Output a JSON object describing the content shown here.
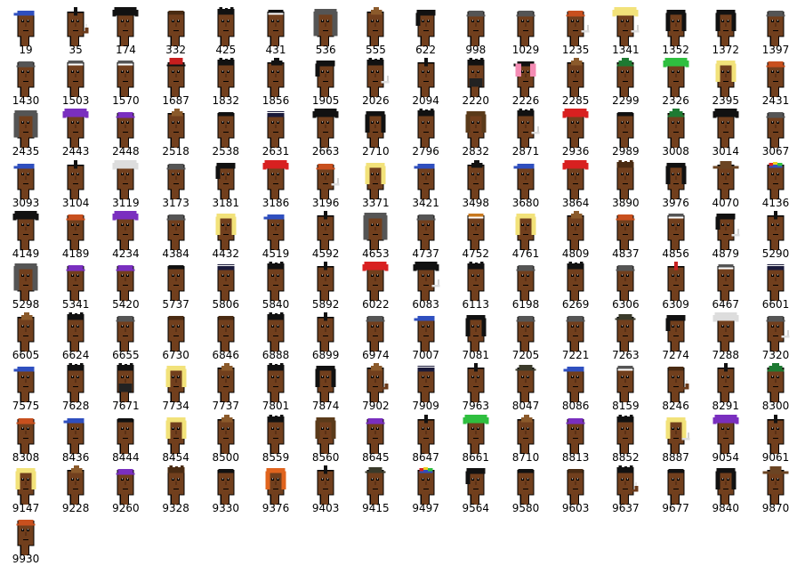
{
  "colors": {
    "skin": "#713f1d",
    "outline": "#000000",
    "eye": "#ffffff",
    "label": "#000000"
  },
  "items": [
    {
      "id": "19",
      "hair": "bandana",
      "hair_color": "#2f4fbf"
    },
    {
      "id": "35",
      "hair": "mohawk",
      "hair_color": "#111111",
      "accessory": "pipe"
    },
    {
      "id": "174",
      "hair": "wild",
      "hair_color": "#111111"
    },
    {
      "id": "332",
      "hair": "short",
      "hair_color": "#4a2b12"
    },
    {
      "id": "425",
      "hair": "messy",
      "hair_color": "#111111"
    },
    {
      "id": "431",
      "hair": "headband",
      "hair_color": "#111111"
    },
    {
      "id": "536",
      "hair": "hoodie",
      "hair_color": "#555555"
    },
    {
      "id": "555",
      "hair": "peak",
      "hair_color": "#8b5a2b"
    },
    {
      "id": "622",
      "hair": "bob",
      "hair_color": "#111111"
    },
    {
      "id": "998",
      "hair": "cap",
      "hair_color": "#555555"
    },
    {
      "id": "1029",
      "hair": "cap",
      "hair_color": "#555555"
    },
    {
      "id": "1235",
      "hair": "cap",
      "hair_color": "#c8501e",
      "accessory": "cigarette"
    },
    {
      "id": "1341",
      "hair": "wild",
      "hair_color": "#f2e27a",
      "accessory": "cigarette"
    },
    {
      "id": "1352",
      "hair": "long",
      "hair_color": "#111111"
    },
    {
      "id": "1372",
      "hair": "long",
      "hair_color": "#111111"
    },
    {
      "id": "1397",
      "hair": "cap",
      "hair_color": "#555555"
    },
    {
      "id": "1430",
      "hair": "cap",
      "hair_color": "#555555"
    },
    {
      "id": "1503",
      "hair": "headband",
      "hair_color": "#555555"
    },
    {
      "id": "1570",
      "hair": "headband",
      "hair_color": "#555555"
    },
    {
      "id": "1687",
      "hair": "tophat",
      "hair_color": "#c81e1e"
    },
    {
      "id": "1832",
      "hair": "messy",
      "hair_color": "#111111"
    },
    {
      "id": "1856",
      "hair": "peak",
      "hair_color": "#111111"
    },
    {
      "id": "1905",
      "hair": "bob",
      "hair_color": "#111111"
    },
    {
      "id": "2026",
      "hair": "messy",
      "hair_color": "#111111",
      "accessory": "cigarette"
    },
    {
      "id": "2094",
      "hair": "mohawk",
      "hair_color": "#111111"
    },
    {
      "id": "2220",
      "hair": "messy",
      "hair_color": "#111111",
      "accessory": "beard"
    },
    {
      "id": "2226",
      "hair": "bandana",
      "hair_color": "#111111",
      "accessory": "pink-hair"
    },
    {
      "id": "2285",
      "hair": "peak",
      "hair_color": "#8b5a2b"
    },
    {
      "id": "2299",
      "hair": "elf",
      "hair_color": "#1e7a32"
    },
    {
      "id": "2326",
      "hair": "wild",
      "hair_color": "#2fbf3f"
    },
    {
      "id": "2395",
      "hair": "long",
      "hair_color": "#f2e27a"
    },
    {
      "id": "2431",
      "hair": "cap",
      "hair_color": "#c8501e"
    },
    {
      "id": "2435",
      "hair": "hoodie",
      "hair_color": "#555555"
    },
    {
      "id": "2443",
      "hair": "wild",
      "hair_color": "#7a2fbf"
    },
    {
      "id": "2448",
      "hair": "cap",
      "hair_color": "#7a2fbf"
    },
    {
      "id": "2518",
      "hair": "peak",
      "hair_color": "#8b5a2b"
    },
    {
      "id": "2538",
      "hair": "short",
      "hair_color": "#111111"
    },
    {
      "id": "2631",
      "hair": "police",
      "hair_color": "#1a1a3a"
    },
    {
      "id": "2663",
      "hair": "wild",
      "hair_color": "#111111"
    },
    {
      "id": "2710",
      "hair": "long",
      "hair_color": "#111111"
    },
    {
      "id": "2796",
      "hair": "messy",
      "hair_color": "#111111"
    },
    {
      "id": "2832",
      "hair": "long",
      "hair_color": "#5a3a1a"
    },
    {
      "id": "2871",
      "hair": "messy",
      "hair_color": "#111111",
      "accessory": "cigarette"
    },
    {
      "id": "2936",
      "hair": "wild",
      "hair_color": "#d82020"
    },
    {
      "id": "2989",
      "hair": "short",
      "hair_color": "#111111"
    },
    {
      "id": "3008",
      "hair": "elf",
      "hair_color": "#1e7a32"
    },
    {
      "id": "3014",
      "hair": "wild",
      "hair_color": "#111111"
    },
    {
      "id": "3067",
      "hair": "cap",
      "hair_color": "#555555"
    },
    {
      "id": "3093",
      "hair": "bandana",
      "hair_color": "#2f4fbf"
    },
    {
      "id": "3104",
      "hair": "mohawk",
      "hair_color": "#111111"
    },
    {
      "id": "3119",
      "hair": "wild",
      "hair_color": "#dddddd"
    },
    {
      "id": "3173",
      "hair": "cap",
      "hair_color": "#555555"
    },
    {
      "id": "3181",
      "hair": "bob",
      "hair_color": "#111111"
    },
    {
      "id": "3186",
      "hair": "wild",
      "hair_color": "#d82020"
    },
    {
      "id": "3196",
      "hair": "cap",
      "hair_color": "#c8501e",
      "accessory": "cigarette"
    },
    {
      "id": "3371",
      "hair": "long",
      "hair_color": "#f2e27a"
    },
    {
      "id": "3421",
      "hair": "bandana",
      "hair_color": "#2f4fbf"
    },
    {
      "id": "3498",
      "hair": "peak",
      "hair_color": "#111111"
    },
    {
      "id": "3680",
      "hair": "bandana",
      "hair_color": "#2f4fbf"
    },
    {
      "id": "3864",
      "hair": "wild",
      "hair_color": "#d82020"
    },
    {
      "id": "3890",
      "hair": "messy",
      "hair_color": "#4a2b12"
    },
    {
      "id": "3976",
      "hair": "long",
      "hair_color": "#111111"
    },
    {
      "id": "4070",
      "hair": "cowboy",
      "hair_color": "#6b4423"
    },
    {
      "id": "4136",
      "hair": "propeller",
      "hair_color": "#2f4fbf"
    },
    {
      "id": "4149",
      "hair": "wild",
      "hair_color": "#111111"
    },
    {
      "id": "4189",
      "hair": "cap",
      "hair_color": "#c8501e"
    },
    {
      "id": "4234",
      "hair": "wild",
      "hair_color": "#7a2fbf"
    },
    {
      "id": "4384",
      "hair": "cap",
      "hair_color": "#555555"
    },
    {
      "id": "4432",
      "hair": "long",
      "hair_color": "#f2e27a"
    },
    {
      "id": "4519",
      "hair": "bandana",
      "hair_color": "#2f4fbf"
    },
    {
      "id": "4592",
      "hair": "mohawk",
      "hair_color": "#111111"
    },
    {
      "id": "4653",
      "hair": "hoodie",
      "hair_color": "#555555"
    },
    {
      "id": "4737",
      "hair": "cap",
      "hair_color": "#555555"
    },
    {
      "id": "4752",
      "hair": "headband",
      "hair_color": "#c8781e"
    },
    {
      "id": "4761",
      "hair": "long",
      "hair_color": "#f2e27a"
    },
    {
      "id": "4809",
      "hair": "peak",
      "hair_color": "#8b5a2b"
    },
    {
      "id": "4837",
      "hair": "cap",
      "hair_color": "#c8501e"
    },
    {
      "id": "4856",
      "hair": "headband",
      "hair_color": "#555555"
    },
    {
      "id": "4879",
      "hair": "bob",
      "hair_color": "#111111",
      "accessory": "cigarette"
    },
    {
      "id": "5290",
      "hair": "mohawk",
      "hair_color": "#111111"
    },
    {
      "id": "5298",
      "hair": "hoodie",
      "hair_color": "#555555"
    },
    {
      "id": "5341",
      "hair": "cap",
      "hair_color": "#7a2fbf"
    },
    {
      "id": "5420",
      "hair": "cap",
      "hair_color": "#7a2fbf"
    },
    {
      "id": "5737",
      "hair": "short",
      "hair_color": "#111111"
    },
    {
      "id": "5806",
      "hair": "police",
      "hair_color": "#1a1a3a"
    },
    {
      "id": "5840",
      "hair": "messy",
      "hair_color": "#111111"
    },
    {
      "id": "5892",
      "hair": "mohawk",
      "hair_color": "#111111"
    },
    {
      "id": "6022",
      "hair": "wild",
      "hair_color": "#d82020"
    },
    {
      "id": "6083",
      "hair": "wild",
      "hair_color": "#111111",
      "accessory": "cigarette"
    },
    {
      "id": "6113",
      "hair": "messy",
      "hair_color": "#111111"
    },
    {
      "id": "6198",
      "hair": "cap",
      "hair_color": "#555555"
    },
    {
      "id": "6269",
      "hair": "messy",
      "hair_color": "#111111"
    },
    {
      "id": "6306",
      "hair": "cap",
      "hair_color": "#555555"
    },
    {
      "id": "6309",
      "hair": "mohawk",
      "hair_color": "#c82020"
    },
    {
      "id": "6467",
      "hair": "headband",
      "hair_color": "#555555"
    },
    {
      "id": "6601",
      "hair": "police",
      "hair_color": "#1a1a3a"
    },
    {
      "id": "6605",
      "hair": "peak",
      "hair_color": "#8b5a2b"
    },
    {
      "id": "6624",
      "hair": "messy",
      "hair_color": "#111111"
    },
    {
      "id": "6655",
      "hair": "cap",
      "hair_color": "#555555"
    },
    {
      "id": "6730",
      "hair": "short",
      "hair_color": "#4a2b12"
    },
    {
      "id": "6846",
      "hair": "short",
      "hair_color": "#4a2b12"
    },
    {
      "id": "6888",
      "hair": "messy",
      "hair_color": "#111111"
    },
    {
      "id": "6899",
      "hair": "mohawk",
      "hair_color": "#111111"
    },
    {
      "id": "6974",
      "hair": "cap",
      "hair_color": "#555555"
    },
    {
      "id": "7007",
      "hair": "bandana",
      "hair_color": "#2f4fbf"
    },
    {
      "id": "7081",
      "hair": "long",
      "hair_color": "#111111"
    },
    {
      "id": "7205",
      "hair": "cap",
      "hair_color": "#555555"
    },
    {
      "id": "7221",
      "hair": "cap",
      "hair_color": "#555555"
    },
    {
      "id": "7263",
      "hair": "fedora",
      "hair_color": "#3a3a2a"
    },
    {
      "id": "7274",
      "hair": "bob",
      "hair_color": "#111111"
    },
    {
      "id": "7288",
      "hair": "wild",
      "hair_color": "#dddddd"
    },
    {
      "id": "7320",
      "hair": "cap",
      "hair_color": "#555555",
      "accessory": "cigarette"
    },
    {
      "id": "7575",
      "hair": "bandana",
      "hair_color": "#2f4fbf"
    },
    {
      "id": "7628",
      "hair": "messy",
      "hair_color": "#111111"
    },
    {
      "id": "7671",
      "hair": "messy",
      "hair_color": "#111111",
      "accessory": "beard"
    },
    {
      "id": "7734",
      "hair": "long",
      "hair_color": "#f2e27a"
    },
    {
      "id": "7737",
      "hair": "peak",
      "hair_color": "#8b5a2b"
    },
    {
      "id": "7801",
      "hair": "messy",
      "hair_color": "#111111"
    },
    {
      "id": "7874",
      "hair": "long",
      "hair_color": "#111111"
    },
    {
      "id": "7902",
      "hair": "peak",
      "hair_color": "#8b5a2b",
      "accessory": "pipe"
    },
    {
      "id": "7909",
      "hair": "police",
      "hair_color": "#1a1a3a"
    },
    {
      "id": "7963",
      "hair": "mohawk",
      "hair_color": "#111111"
    },
    {
      "id": "8047",
      "hair": "fedora",
      "hair_color": "#3a3a2a"
    },
    {
      "id": "8086",
      "hair": "bandana",
      "hair_color": "#2f4fbf"
    },
    {
      "id": "8159",
      "hair": "headband",
      "hair_color": "#555555"
    },
    {
      "id": "8246",
      "hair": "short",
      "hair_color": "#4a2b12",
      "accessory": "pipe"
    },
    {
      "id": "8291",
      "hair": "mohawk",
      "hair_color": "#111111"
    },
    {
      "id": "8300",
      "hair": "elf",
      "hair_color": "#1e7a32"
    },
    {
      "id": "8308",
      "hair": "cap",
      "hair_color": "#c8501e"
    },
    {
      "id": "8436",
      "hair": "bandana",
      "hair_color": "#2f4fbf"
    },
    {
      "id": "8444",
      "hair": "short",
      "hair_color": "#111111"
    },
    {
      "id": "8454",
      "hair": "long",
      "hair_color": "#f2e27a"
    },
    {
      "id": "8500",
      "hair": "peak",
      "hair_color": "#8b5a2b"
    },
    {
      "id": "8559",
      "hair": "messy",
      "hair_color": "#111111"
    },
    {
      "id": "8560",
      "hair": "long",
      "hair_color": "#5a3a1a"
    },
    {
      "id": "8645",
      "hair": "cap",
      "hair_color": "#7a2fbf"
    },
    {
      "id": "8647",
      "hair": "mohawk",
      "hair_color": "#111111"
    },
    {
      "id": "8661",
      "hair": "wild",
      "hair_color": "#2fbf3f"
    },
    {
      "id": "8710",
      "hair": "peak",
      "hair_color": "#8b5a2b"
    },
    {
      "id": "8813",
      "hair": "cap",
      "hair_color": "#7a2fbf"
    },
    {
      "id": "8852",
      "hair": "messy",
      "hair_color": "#111111"
    },
    {
      "id": "8887",
      "hair": "long",
      "hair_color": "#f2e27a",
      "accessory": "cigarette"
    },
    {
      "id": "9054",
      "hair": "wild",
      "hair_color": "#7a2fbf"
    },
    {
      "id": "9061",
      "hair": "mohawk",
      "hair_color": "#111111"
    },
    {
      "id": "9147",
      "hair": "long",
      "hair_color": "#f2e27a"
    },
    {
      "id": "9228",
      "hair": "peak",
      "hair_color": "#8b5a2b"
    },
    {
      "id": "9260",
      "hair": "cap",
      "hair_color": "#7a2fbf"
    },
    {
      "id": "9328",
      "hair": "messy",
      "hair_color": "#4a2b12"
    },
    {
      "id": "9330",
      "hair": "short",
      "hair_color": "#111111"
    },
    {
      "id": "9376",
      "hair": "long",
      "hair_color": "#e0641e"
    },
    {
      "id": "9403",
      "hair": "mohawk",
      "hair_color": "#111111"
    },
    {
      "id": "9415",
      "hair": "fedora",
      "hair_color": "#3a3a2a"
    },
    {
      "id": "9497",
      "hair": "propeller",
      "hair_color": "#2f4fbf"
    },
    {
      "id": "9564",
      "hair": "bob",
      "hair_color": "#111111"
    },
    {
      "id": "9580",
      "hair": "short",
      "hair_color": "#111111"
    },
    {
      "id": "9603",
      "hair": "short",
      "hair_color": "#4a2b12"
    },
    {
      "id": "9637",
      "hair": "messy",
      "hair_color": "#111111",
      "accessory": "pipe"
    },
    {
      "id": "9677",
      "hair": "short",
      "hair_color": "#111111"
    },
    {
      "id": "9840",
      "hair": "long",
      "hair_color": "#111111"
    },
    {
      "id": "9870",
      "hair": "cowboy",
      "hair_color": "#6b4423"
    },
    {
      "id": "9930",
      "hair": "cap",
      "hair_color": "#c8501e"
    }
  ]
}
